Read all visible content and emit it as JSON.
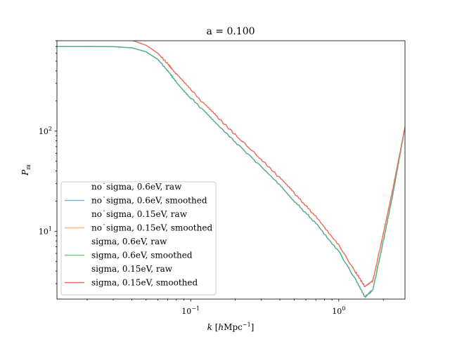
{
  "chart_data": {
    "type": "line",
    "title": "a = 0.100",
    "xlabel": {
      "main": "k",
      "unit_open": " [",
      "unit_h": "h",
      "unit_body": "Mpc",
      "unit_sup": "−1",
      "unit_close": "]"
    },
    "ylabel": {
      "main": "P",
      "sub": "m"
    },
    "xscale": "log",
    "yscale": "log",
    "xlim": [
      0.0125,
      2.8
    ],
    "ylim": [
      2.1,
      800
    ],
    "xticks": [
      {
        "value": 0.1,
        "base": "10",
        "exp": "−1"
      },
      {
        "value": 1,
        "base": "10",
        "exp": "0"
      }
    ],
    "yticks": [
      {
        "value": 10,
        "base": "10",
        "exp": "1"
      },
      {
        "value": 100,
        "base": "10",
        "exp": "2"
      }
    ],
    "legend": {
      "position": "lower-left",
      "entries": [
        {
          "label": "no˙sigma, 0.6eV, raw",
          "color": "",
          "show_line": false
        },
        {
          "label": "no˙sigma, 0.6eV, smoothed",
          "color": "#7eb0d5",
          "show_line": true
        },
        {
          "label": "no˙sigma, 0.15eV, raw",
          "color": "",
          "show_line": false
        },
        {
          "label": "no˙sigma, 0.15eV, smoothed",
          "color": "#ffbf7a",
          "show_line": true
        },
        {
          "label": "sigma, 0.6eV, raw",
          "color": "",
          "show_line": false
        },
        {
          "label": "sigma, 0.6eV, smoothed",
          "color": "#7ec87e",
          "show_line": true
        },
        {
          "label": "sigma, 0.15eV, raw",
          "color": "",
          "show_line": false
        },
        {
          "label": "sigma, 0.15eV, smoothed",
          "color": "#f07058",
          "show_line": true
        }
      ]
    },
    "series": [
      {
        "name": "sigma, 0.6eV, smoothed",
        "color": "#5aaa8a",
        "x": [
          0.0125,
          0.02,
          0.03,
          0.04,
          0.05,
          0.06,
          0.07,
          0.08,
          0.1,
          0.12,
          0.15,
          0.2,
          0.3,
          0.4,
          0.5,
          0.7,
          1.0,
          1.3,
          1.5,
          1.7,
          2.0,
          2.3,
          2.6,
          2.8
        ],
        "y": [
          700,
          700,
          698,
          680,
          620,
          520,
          400,
          310,
          215,
          165,
          118,
          78,
          44,
          29,
          20,
          12,
          6.3,
          3.3,
          2.2,
          2.6,
          8,
          22,
          60,
          110
        ]
      },
      {
        "name": "sigma, 0.15eV, smoothed",
        "color": "#e8735c",
        "x": [
          0.0125,
          0.02,
          0.03,
          0.04,
          0.05,
          0.06,
          0.07,
          0.08,
          0.1,
          0.12,
          0.15,
          0.2,
          0.3,
          0.4,
          0.5,
          0.7,
          1.0,
          1.3,
          1.5,
          1.7,
          2.0,
          2.3,
          2.6,
          2.8
        ],
        "y": [
          900,
          890,
          860,
          810,
          720,
          600,
          470,
          370,
          260,
          195,
          140,
          92,
          52,
          34,
          24,
          14,
          7.3,
          3.9,
          2.8,
          3.2,
          9.5,
          25,
          63,
          110
        ]
      }
    ]
  }
}
